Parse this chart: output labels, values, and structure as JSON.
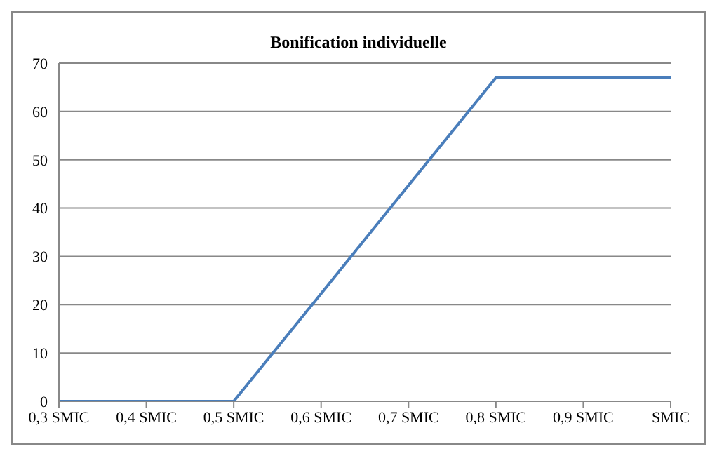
{
  "chart_data": {
    "type": "line",
    "title": "Bonification individuelle",
    "categories": [
      "0,3 SMIC",
      "0,4 SMIC",
      "0,5 SMIC",
      "0,6 SMIC",
      "0,7 SMIC",
      "0,8 SMIC",
      "0,9 SMIC",
      "SMIC"
    ],
    "series": [
      {
        "color": "#4a7ebb",
        "values": [
          0,
          0,
          0,
          22.3,
          44.7,
          67,
          67,
          67
        ]
      }
    ],
    "ylim": [
      0,
      70
    ],
    "yticks": [
      0,
      10,
      20,
      30,
      40,
      50,
      60,
      70
    ],
    "grid": "y",
    "legend": false,
    "marker": "none",
    "line_style": "solid"
  }
}
